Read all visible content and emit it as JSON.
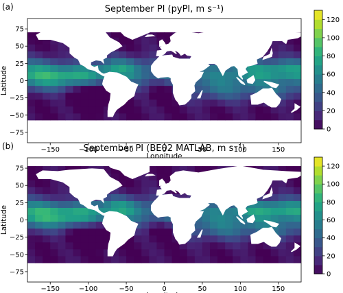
{
  "chart_data": [
    {
      "type": "heatmap",
      "panel_label": "(a)",
      "title": "September PI (pyPI, m s⁻¹)",
      "xlabel": "Longitude",
      "ylabel": "Latitude",
      "xlim": [
        -180,
        180
      ],
      "ylim": [
        -90,
        90
      ],
      "xticks": [
        -150,
        -100,
        -50,
        0,
        50,
        100,
        150
      ],
      "yticks": [
        -75,
        -50,
        -25,
        0,
        25,
        50,
        75
      ],
      "colorbar": {
        "ticks": [
          0,
          20,
          40,
          60,
          80,
          100,
          120
        ],
        "range": [
          0,
          130
        ],
        "colormap": "viridis"
      },
      "land_color": "#ffffff",
      "ocean_lat_range": [
        -57,
        70
      ],
      "tropical_peak_pi": 85
    },
    {
      "type": "heatmap",
      "panel_label": "(b)",
      "title": "September PI (BE02 MATLAB, m s⁻¹)",
      "xlabel": "Longitude",
      "ylabel": "Latitude",
      "xlim": [
        -180,
        180
      ],
      "ylim": [
        -90,
        90
      ],
      "xticks": [
        -150,
        -100,
        -50,
        0,
        50,
        100,
        150
      ],
      "yticks": [
        -75,
        -50,
        -25,
        0,
        25,
        50,
        75
      ],
      "colorbar": {
        "ticks": [
          0,
          20,
          40,
          60,
          80,
          100,
          120
        ],
        "range": [
          0,
          130
        ],
        "colormap": "viridis"
      },
      "land_color": "#ffffff",
      "ocean_lat_range": [
        -62,
        78
      ],
      "tropical_peak_pi": 88
    }
  ]
}
